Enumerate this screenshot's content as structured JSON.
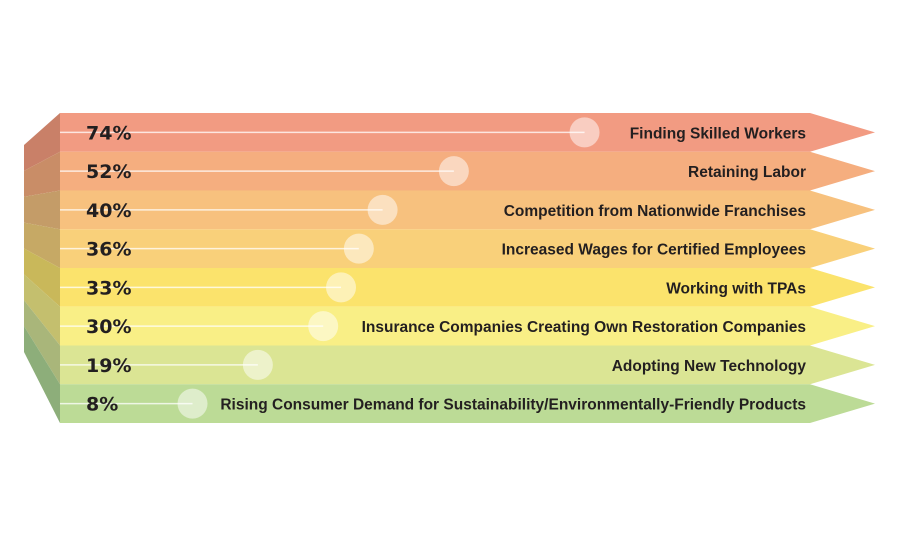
{
  "chart_data": {
    "type": "bar",
    "title": "",
    "xlabel": "",
    "ylabel": "",
    "xlim": [
      0,
      100
    ],
    "categories": [
      "Finding Skilled Workers",
      "Retaining Labor",
      "Competition from Nationwide Franchises",
      "Increased Wages for Certified Employees",
      "Working with TPAs",
      "Insurance Companies Creating Own Restoration Companies",
      "Adopting New Technology",
      "Rising Consumer Demand for Sustainability/Environmentally-Friendly Products"
    ],
    "values": [
      74,
      52,
      40,
      36,
      33,
      30,
      19,
      8
    ],
    "value_labels": [
      "74%",
      "52%",
      "40%",
      "36%",
      "33%",
      "30%",
      "19%",
      "8%"
    ],
    "colors": [
      "#f29b82",
      "#f5ae7f",
      "#f7c17e",
      "#f9d07a",
      "#fbe36c",
      "#f9ef86",
      "#dbe594",
      "#bcdb96"
    ],
    "side_colors": [
      "#c98068",
      "#c98d67",
      "#c49c68",
      "#c6a965",
      "#c9b85a",
      "#c4bf6e",
      "#a9b67a",
      "#8dae7a"
    ]
  }
}
